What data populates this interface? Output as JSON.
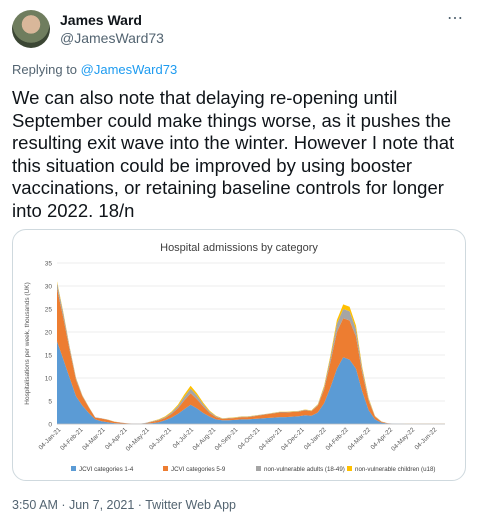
{
  "author": {
    "name": "James Ward",
    "handle": "@JamesWard73"
  },
  "more_icon": "⋯",
  "reply": {
    "prefix": "Replying to ",
    "handle": "@JamesWard73"
  },
  "tweet_text": "We can also note that delaying re-opening until September could make things worse, as it pushes the resulting exit wave into the winter.  However I note that this situation could be improved by using booster vaccinations, or retaining baseline controls for longer into 2022.  18/n",
  "footer": {
    "time": "3:50 AM",
    "sep": " · ",
    "date": "Jun 7, 2021",
    "sep2": " · ",
    "app": "Twitter Web App"
  },
  "chart_data": {
    "type": "area",
    "title": "Hospital admissions by category",
    "ylabel": "Hospitalisations per week, thousands (UK)",
    "ylim": [
      0,
      35
    ],
    "yticks": [
      0,
      5,
      10,
      15,
      20,
      25,
      30,
      35
    ],
    "xticks": [
      "04-Jan-21",
      "04-Feb-21",
      "04-Mar-21",
      "04-Apr-21",
      "04-May-21",
      "04-Jun-21",
      "04-Jul-21",
      "04-Aug-21",
      "04-Sep-21",
      "04-Oct-21",
      "04-Nov-21",
      "04-Dec-21",
      "04-Jan-22",
      "04-Feb-22",
      "04-Mar-22",
      "04-Apr-22",
      "04-May-22",
      "04-Jun-22"
    ],
    "series": [
      {
        "name": "JCVI categories 1-4",
        "color": "#5b9bd5",
        "values": [
          18,
          14,
          10,
          6,
          4,
          2.4,
          1,
          0.6,
          0.4,
          0.2,
          0.1,
          0.05,
          0.02,
          0.02,
          0.1,
          0.2,
          0.4,
          0.8,
          1.4,
          2.2,
          3.2,
          4.2,
          3.4,
          2.4,
          1.6,
          1,
          0.8,
          0.8,
          0.9,
          1,
          1,
          1.1,
          1.2,
          1.3,
          1.4,
          1.5,
          1.5,
          1.6,
          1.7,
          1.9,
          1.8,
          2.5,
          4.5,
          8,
          12,
          14.5,
          14,
          12,
          7,
          3,
          1,
          0.3,
          0.1,
          0.05,
          0.02,
          0.01,
          0.01,
          0.01,
          0.01,
          0.01,
          0.01,
          0.01
        ]
      },
      {
        "name": "JCVI categories 5-9",
        "color": "#ed7d31",
        "values": [
          11.5,
          9,
          6,
          3.5,
          2,
          1.2,
          0.4,
          0.6,
          0.5,
          0.3,
          0.2,
          0.1,
          0.05,
          0.03,
          0.1,
          0.3,
          0.4,
          0.5,
          0.8,
          1.2,
          1.9,
          2.5,
          2,
          1.4,
          0.8,
          0.5,
          0.3,
          0.4,
          0.4,
          0.5,
          0.5,
          0.6,
          0.7,
          0.8,
          0.9,
          1,
          1,
          1,
          1,
          1.1,
          1,
          1.5,
          3,
          5.5,
          8,
          8.5,
          8.5,
          7,
          4,
          2,
          0.6,
          0.2,
          0.05,
          0.02,
          0.01,
          0.01,
          0.01,
          0.01,
          0.01,
          0.01,
          0.01,
          0.01
        ]
      },
      {
        "name": "non-vulnerable adults (18-49)",
        "color": "#a5a5a5",
        "values": [
          1.2,
          1,
          0.6,
          0.4,
          0.2,
          0.1,
          0.05,
          0.05,
          0.05,
          0.03,
          0.02,
          0.01,
          0.01,
          0.01,
          0.05,
          0.1,
          0.15,
          0.2,
          0.3,
          0.5,
          0.8,
          1,
          0.8,
          0.5,
          0.3,
          0.2,
          0.1,
          0.1,
          0.1,
          0.1,
          0.1,
          0.1,
          0.1,
          0.1,
          0.1,
          0.1,
          0.1,
          0.1,
          0.1,
          0.1,
          0.1,
          0.2,
          0.5,
          1,
          1.8,
          2,
          2,
          1.6,
          0.9,
          0.4,
          0.1,
          0.05,
          0.01,
          0.01,
          0.01,
          0.01,
          0.01,
          0.01,
          0.01,
          0.01,
          0.01,
          0.01
        ]
      },
      {
        "name": "non-vulnerable children (u18)",
        "color": "#ffc000",
        "values": [
          0.3,
          0.25,
          0.15,
          0.1,
          0.05,
          0.03,
          0.02,
          0.02,
          0.02,
          0.01,
          0.01,
          0.01,
          0.01,
          0.01,
          0.02,
          0.05,
          0.1,
          0.15,
          0.2,
          0.3,
          0.5,
          0.6,
          0.5,
          0.3,
          0.2,
          0.1,
          0.05,
          0.05,
          0.05,
          0.05,
          0.05,
          0.05,
          0.05,
          0.05,
          0.05,
          0.05,
          0.05,
          0.05,
          0.05,
          0.05,
          0.05,
          0.1,
          0.3,
          0.5,
          0.8,
          1,
          1,
          0.8,
          0.4,
          0.2,
          0.05,
          0.02,
          0.01,
          0.01,
          0.01,
          0.01,
          0.01,
          0.01,
          0.01,
          0.01,
          0.01,
          0.01
        ]
      }
    ],
    "legend_position": "bottom",
    "grid": true
  }
}
